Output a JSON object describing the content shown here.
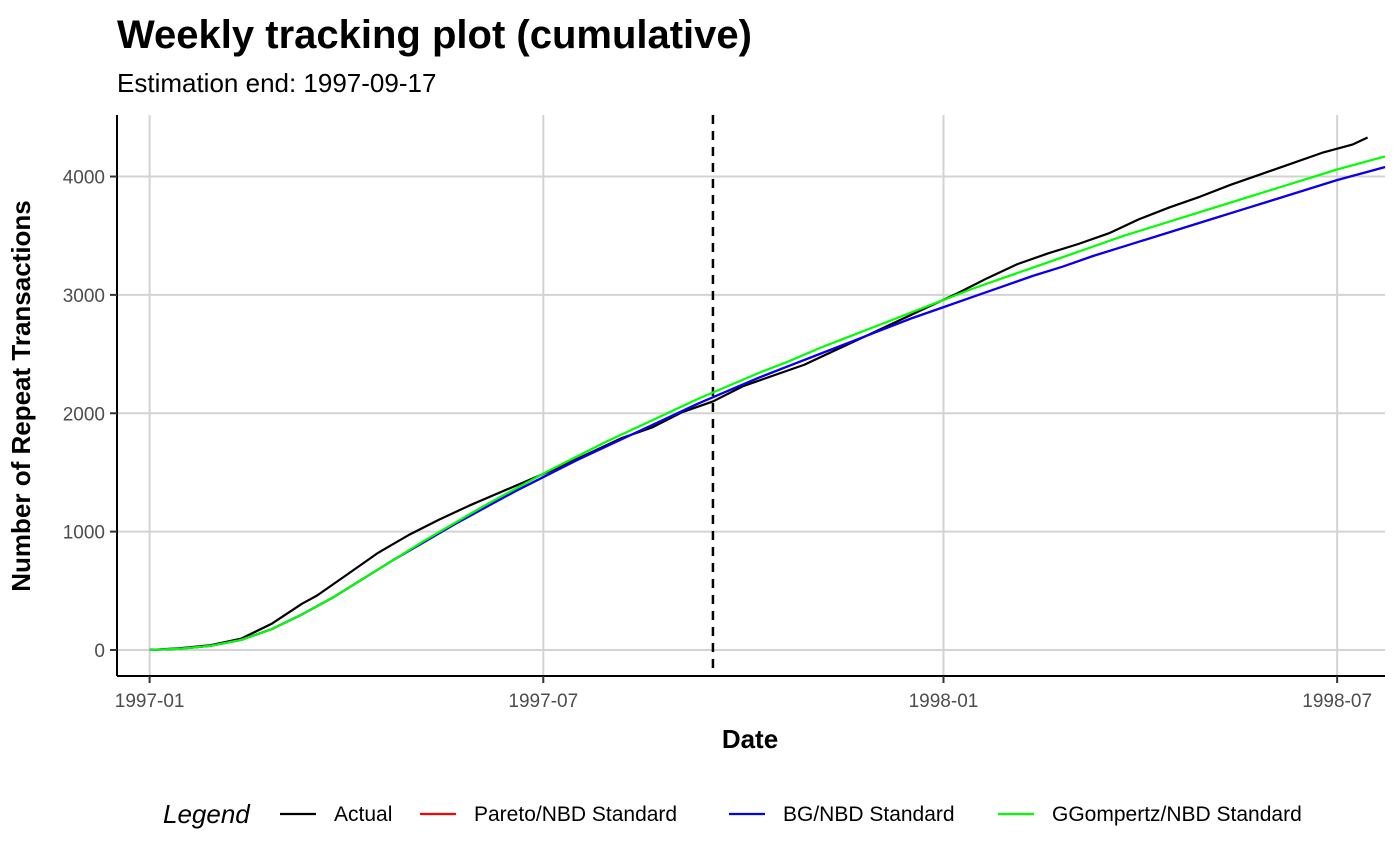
{
  "chart_data": {
    "type": "line",
    "title": "Weekly tracking plot (cumulative)",
    "subtitle": "Estimation end: 1997-09-17",
    "xlabel": "Date",
    "ylabel": "Number of Repeat Transactions",
    "x_type": "date",
    "xlim": [
      "1996-12-17",
      "1998-07-23"
    ],
    "ylim": [
      -220,
      4520
    ],
    "x_ticks": [
      {
        "date": "1997-01-01",
        "label": "1997-01"
      },
      {
        "date": "1997-07-01",
        "label": "1997-07"
      },
      {
        "date": "1998-01-01",
        "label": "1998-01"
      },
      {
        "date": "1998-07-01",
        "label": "1998-07"
      }
    ],
    "y_ticks": [
      0,
      1000,
      2000,
      3000,
      4000
    ],
    "y_tick_labels": [
      "0",
      "1000",
      "2000",
      "3000",
      "4000"
    ],
    "grid": true,
    "vline": {
      "date": "1997-09-17",
      "style": "dashed",
      "color": "#000000"
    },
    "legend": {
      "title": "Legend",
      "position": "bottom",
      "entries": [
        {
          "label": "Actual",
          "color": "#000000"
        },
        {
          "label": "Pareto/NBD Standard",
          "color": "#ff0000"
        },
        {
          "label": "BG/NBD Standard",
          "color": "#0000ff"
        },
        {
          "label": "GGompertz/NBD Standard",
          "color": "#00ff00"
        }
      ]
    },
    "series": [
      {
        "name": "Actual",
        "color": "#000000",
        "points": [
          [
            "1997-01-01",
            0
          ],
          [
            "1997-01-15",
            15
          ],
          [
            "1997-01-29",
            40
          ],
          [
            "1997-02-12",
            95
          ],
          [
            "1997-02-26",
            220
          ],
          [
            "1997-03-12",
            390
          ],
          [
            "1997-03-19",
            460
          ],
          [
            "1997-04-02",
            640
          ],
          [
            "1997-04-16",
            820
          ],
          [
            "1997-04-30",
            970
          ],
          [
            "1997-05-14",
            1100
          ],
          [
            "1997-05-28",
            1220
          ],
          [
            "1997-06-11",
            1330
          ],
          [
            "1997-06-25",
            1440
          ],
          [
            "1997-07-09",
            1550
          ],
          [
            "1997-07-23",
            1670
          ],
          [
            "1997-08-06",
            1790
          ],
          [
            "1997-08-20",
            1880
          ],
          [
            "1997-09-03",
            2010
          ],
          [
            "1997-09-17",
            2100
          ],
          [
            "1997-10-01",
            2230
          ],
          [
            "1997-10-15",
            2320
          ],
          [
            "1997-10-29",
            2410
          ],
          [
            "1997-11-12",
            2530
          ],
          [
            "1997-11-26",
            2650
          ],
          [
            "1997-12-10",
            2770
          ],
          [
            "1997-12-24",
            2890
          ],
          [
            "1998-01-07",
            3010
          ],
          [
            "1998-01-21",
            3140
          ],
          [
            "1998-02-04",
            3260
          ],
          [
            "1998-02-18",
            3350
          ],
          [
            "1998-03-04",
            3430
          ],
          [
            "1998-03-18",
            3520
          ],
          [
            "1998-04-01",
            3640
          ],
          [
            "1998-04-15",
            3740
          ],
          [
            "1998-04-29",
            3830
          ],
          [
            "1998-05-13",
            3930
          ],
          [
            "1998-05-27",
            4020
          ],
          [
            "1998-06-10",
            4110
          ],
          [
            "1998-06-24",
            4200
          ],
          [
            "1998-07-08",
            4270
          ],
          [
            "1998-07-15",
            4330
          ]
        ]
      },
      {
        "name": "Pareto/NBD Standard",
        "color": "#ff0000",
        "points": [
          [
            "1997-01-01",
            0
          ],
          [
            "1997-01-15",
            10
          ],
          [
            "1997-01-29",
            35
          ],
          [
            "1997-02-12",
            85
          ],
          [
            "1997-02-26",
            175
          ],
          [
            "1997-03-12",
            300
          ],
          [
            "1997-03-26",
            440
          ],
          [
            "1997-04-09",
            600
          ],
          [
            "1997-04-23",
            760
          ],
          [
            "1997-05-07",
            910
          ],
          [
            "1997-05-21",
            1060
          ],
          [
            "1997-06-04",
            1200
          ],
          [
            "1997-06-18",
            1340
          ],
          [
            "1997-07-02",
            1470
          ],
          [
            "1997-07-16",
            1600
          ],
          [
            "1997-07-30",
            1720
          ],
          [
            "1997-08-13",
            1840
          ],
          [
            "1997-08-27",
            1960
          ],
          [
            "1997-09-10",
            2080
          ],
          [
            "1997-09-24",
            2190
          ],
          [
            "1997-10-08",
            2300
          ],
          [
            "1997-10-22",
            2400
          ],
          [
            "1997-11-05",
            2500
          ],
          [
            "1997-11-19",
            2600
          ],
          [
            "1997-12-03",
            2700
          ],
          [
            "1997-12-17",
            2800
          ],
          [
            "1997-12-31",
            2890
          ],
          [
            "1998-01-14",
            2980
          ],
          [
            "1998-01-28",
            3070
          ],
          [
            "1998-02-11",
            3160
          ],
          [
            "1998-02-25",
            3240
          ],
          [
            "1998-03-11",
            3330
          ],
          [
            "1998-03-25",
            3410
          ],
          [
            "1998-04-08",
            3490
          ],
          [
            "1998-04-22",
            3570
          ],
          [
            "1998-05-06",
            3650
          ],
          [
            "1998-05-20",
            3730
          ],
          [
            "1998-06-03",
            3810
          ],
          [
            "1998-06-17",
            3890
          ],
          [
            "1998-07-01",
            3970
          ],
          [
            "1998-07-15",
            4040
          ],
          [
            "1998-07-23",
            4080
          ]
        ]
      },
      {
        "name": "BG/NBD Standard",
        "color": "#0000ff",
        "points": [
          [
            "1997-01-01",
            0
          ],
          [
            "1997-01-15",
            10
          ],
          [
            "1997-01-29",
            35
          ],
          [
            "1997-02-12",
            85
          ],
          [
            "1997-02-26",
            175
          ],
          [
            "1997-03-12",
            300
          ],
          [
            "1997-03-26",
            440
          ],
          [
            "1997-04-09",
            600
          ],
          [
            "1997-04-23",
            760
          ],
          [
            "1997-05-07",
            910
          ],
          [
            "1997-05-21",
            1060
          ],
          [
            "1997-06-04",
            1200
          ],
          [
            "1997-06-18",
            1340
          ],
          [
            "1997-07-02",
            1470
          ],
          [
            "1997-07-16",
            1600
          ],
          [
            "1997-07-30",
            1720
          ],
          [
            "1997-08-13",
            1840
          ],
          [
            "1997-08-27",
            1960
          ],
          [
            "1997-09-10",
            2080
          ],
          [
            "1997-09-24",
            2190
          ],
          [
            "1997-10-08",
            2300
          ],
          [
            "1997-10-22",
            2400
          ],
          [
            "1997-11-05",
            2500
          ],
          [
            "1997-11-19",
            2600
          ],
          [
            "1997-12-03",
            2700
          ],
          [
            "1997-12-17",
            2800
          ],
          [
            "1997-12-31",
            2890
          ],
          [
            "1998-01-14",
            2980
          ],
          [
            "1998-01-28",
            3070
          ],
          [
            "1998-02-11",
            3160
          ],
          [
            "1998-02-25",
            3240
          ],
          [
            "1998-03-11",
            3330
          ],
          [
            "1998-03-25",
            3410
          ],
          [
            "1998-04-08",
            3490
          ],
          [
            "1998-04-22",
            3570
          ],
          [
            "1998-05-06",
            3650
          ],
          [
            "1998-05-20",
            3730
          ],
          [
            "1998-06-03",
            3810
          ],
          [
            "1998-06-17",
            3890
          ],
          [
            "1998-07-01",
            3970
          ],
          [
            "1998-07-15",
            4040
          ],
          [
            "1998-07-23",
            4080
          ]
        ]
      },
      {
        "name": "GGompertz/NBD Standard",
        "color": "#00ff00",
        "points": [
          [
            "1997-01-01",
            0
          ],
          [
            "1997-01-15",
            10
          ],
          [
            "1997-01-29",
            35
          ],
          [
            "1997-02-12",
            85
          ],
          [
            "1997-02-26",
            175
          ],
          [
            "1997-03-12",
            300
          ],
          [
            "1997-03-26",
            440
          ],
          [
            "1997-04-09",
            600
          ],
          [
            "1997-04-23",
            760
          ],
          [
            "1997-05-07",
            920
          ],
          [
            "1997-05-21",
            1070
          ],
          [
            "1997-06-04",
            1220
          ],
          [
            "1997-06-18",
            1360
          ],
          [
            "1997-07-02",
            1500
          ],
          [
            "1997-07-16",
            1630
          ],
          [
            "1997-07-30",
            1760
          ],
          [
            "1997-08-13",
            1880
          ],
          [
            "1997-08-27",
            2000
          ],
          [
            "1997-09-10",
            2120
          ],
          [
            "1997-09-24",
            2230
          ],
          [
            "1997-10-08",
            2340
          ],
          [
            "1997-10-22",
            2440
          ],
          [
            "1997-11-05",
            2550
          ],
          [
            "1997-11-19",
            2650
          ],
          [
            "1997-12-03",
            2750
          ],
          [
            "1997-12-17",
            2850
          ],
          [
            "1997-12-31",
            2950
          ],
          [
            "1998-01-14",
            3050
          ],
          [
            "1998-01-28",
            3140
          ],
          [
            "1998-02-11",
            3230
          ],
          [
            "1998-02-25",
            3320
          ],
          [
            "1998-03-11",
            3410
          ],
          [
            "1998-03-25",
            3500
          ],
          [
            "1998-04-08",
            3580
          ],
          [
            "1998-04-22",
            3660
          ],
          [
            "1998-05-06",
            3740
          ],
          [
            "1998-05-20",
            3820
          ],
          [
            "1998-06-03",
            3900
          ],
          [
            "1998-06-17",
            3980
          ],
          [
            "1998-07-01",
            4060
          ],
          [
            "1998-07-15",
            4130
          ],
          [
            "1998-07-23",
            4170
          ]
        ]
      }
    ]
  }
}
